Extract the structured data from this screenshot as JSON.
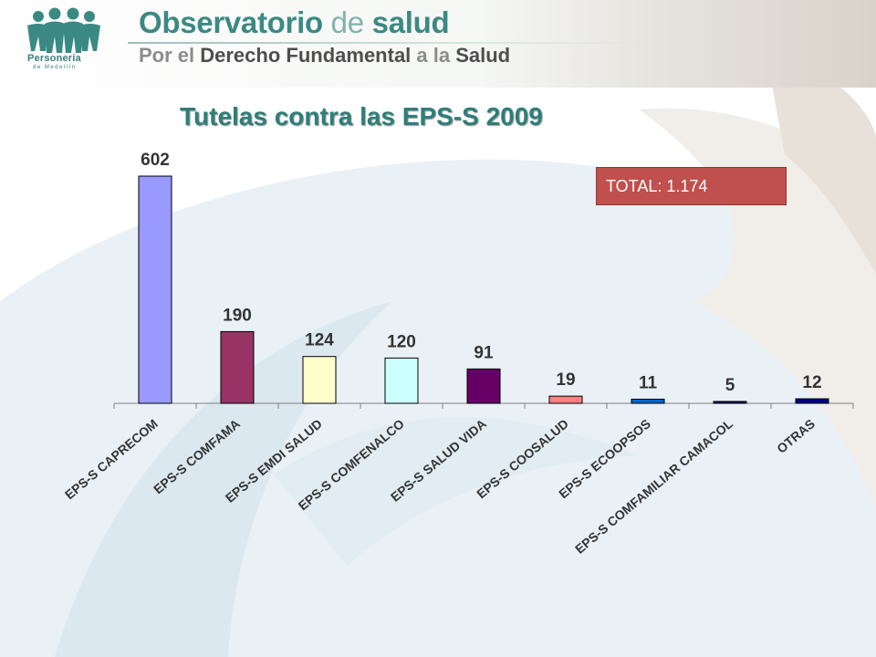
{
  "header": {
    "title_part1": "Observatorio ",
    "title_part2": "de ",
    "title_part3": "salud",
    "subtitle_part1": "Por el ",
    "subtitle_part2": "Derecho Fundamental ",
    "subtitle_part3": "a la ",
    "subtitle_part4": "Salud",
    "logo_line1": "Personería",
    "logo_line2": "de Medellín"
  },
  "total_label": "TOTAL: 1.174",
  "colors": {
    "title": "#2e7e79",
    "total_box": "#c0504d"
  },
  "chart_data": {
    "type": "bar",
    "title": "Tutelas contra las EPS-S 2009",
    "categories": [
      "EPS-S CAPRECOM",
      "EPS-S COMFAMA",
      "EPS-S EMDI SALUD",
      "EPS-S COMFENALCO",
      "EPS-S SALUD VIDA",
      "EPS-S COOSALUD",
      "EPS-S ECOOPSOS",
      "EPS-S COMFAMILIAR CAMACOL",
      "OTRAS"
    ],
    "values": [
      602,
      190,
      124,
      120,
      91,
      19,
      11,
      5,
      12
    ],
    "bar_colors": [
      "#9999ff",
      "#993366",
      "#ffffcc",
      "#ccffff",
      "#660066",
      "#ff8080",
      "#0066cc",
      "#000080",
      "#000080"
    ],
    "xlabel": "",
    "ylabel": "",
    "ylim": [
      0,
      602
    ],
    "grid": false,
    "legend": "none"
  }
}
